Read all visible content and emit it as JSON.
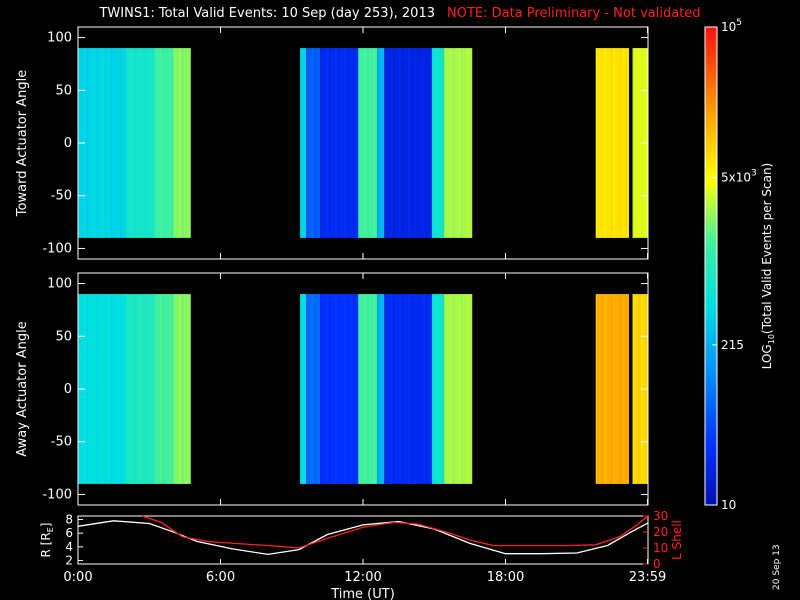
{
  "header": {
    "title": "TWINS1: Total Valid Events: 10 Sep (day 253), 2013",
    "note": "NOTE: Data Preliminary - Not validated"
  },
  "date_stamp": "20 Sep 13",
  "chart_data": [
    {
      "type": "heatmap",
      "ylabel": "Toward Actuator Angle",
      "ylim": [
        -110,
        110
      ],
      "yticks": [
        100,
        50,
        0,
        -50,
        -100
      ],
      "angle_range": [
        -90,
        90
      ],
      "xlim_hours": [
        0,
        24
      ],
      "gaps_hours": [
        [
          4.75,
          9.35
        ],
        [
          16.6,
          21.8
        ],
        [
          23.2,
          23.35
        ]
      ],
      "blocks": [
        {
          "start": 0.0,
          "end": 2.0,
          "level": 0.4
        },
        {
          "start": 2.0,
          "end": 3.2,
          "level": 0.46
        },
        {
          "start": 3.2,
          "end": 4.0,
          "level": 0.54
        },
        {
          "start": 4.0,
          "end": 4.75,
          "level": 0.6
        },
        {
          "start": 9.35,
          "end": 9.6,
          "level": 0.4
        },
        {
          "start": 9.6,
          "end": 10.2,
          "level": 0.2
        },
        {
          "start": 10.2,
          "end": 11.8,
          "level": 0.1
        },
        {
          "start": 11.8,
          "end": 12.6,
          "level": 0.55
        },
        {
          "start": 12.6,
          "end": 12.9,
          "level": 0.35
        },
        {
          "start": 12.9,
          "end": 14.9,
          "level": 0.08
        },
        {
          "start": 14.9,
          "end": 15.4,
          "level": 0.45
        },
        {
          "start": 15.4,
          "end": 16.6,
          "level": 0.62
        },
        {
          "start": 21.8,
          "end": 23.2,
          "level": 0.72
        },
        {
          "start": 23.35,
          "end": 24.0,
          "level": 0.66
        }
      ]
    },
    {
      "type": "heatmap",
      "ylabel": "Away Actuator Angle",
      "ylim": [
        -110,
        110
      ],
      "yticks": [
        100,
        50,
        0,
        -50,
        -100
      ],
      "angle_range": [
        -90,
        90
      ],
      "xlim_hours": [
        0,
        24
      ],
      "gaps_hours": [
        [
          4.75,
          9.35
        ],
        [
          16.6,
          21.8
        ],
        [
          23.2,
          23.35
        ]
      ],
      "blocks": [
        {
          "start": 0.0,
          "end": 2.0,
          "level": 0.42
        },
        {
          "start": 2.0,
          "end": 3.2,
          "level": 0.48
        },
        {
          "start": 3.2,
          "end": 4.0,
          "level": 0.55
        },
        {
          "start": 4.0,
          "end": 4.75,
          "level": 0.6
        },
        {
          "start": 9.35,
          "end": 9.6,
          "level": 0.42
        },
        {
          "start": 9.6,
          "end": 10.2,
          "level": 0.22
        },
        {
          "start": 10.2,
          "end": 11.8,
          "level": 0.12
        },
        {
          "start": 11.8,
          "end": 12.6,
          "level": 0.55
        },
        {
          "start": 12.6,
          "end": 12.9,
          "level": 0.35
        },
        {
          "start": 12.9,
          "end": 14.9,
          "level": 0.1
        },
        {
          "start": 14.9,
          "end": 15.4,
          "level": 0.45
        },
        {
          "start": 15.4,
          "end": 16.6,
          "level": 0.62
        },
        {
          "start": 21.8,
          "end": 23.2,
          "level": 0.8
        },
        {
          "start": 23.35,
          "end": 24.0,
          "level": 0.74
        }
      ]
    },
    {
      "type": "line",
      "ylabel": "R [R",
      "ylabel_sub": "E",
      "ylabel_close": "]",
      "ylim": [
        1.5,
        8.5
      ],
      "yticks": [
        2,
        4,
        6,
        8
      ],
      "xlabel": "Time (UT)",
      "xticks": [
        "0:00",
        "6:00",
        "12:00",
        "18:00",
        "23:59"
      ],
      "xtick_hours": [
        0,
        6,
        12,
        18,
        23.98
      ],
      "series": [
        {
          "axis": "left",
          "color": "#ffffff",
          "x": [
            0,
            1.5,
            3,
            4,
            5,
            6.5,
            8,
            9.3,
            10.5,
            12,
            13.5,
            15,
            16.5,
            18,
            19.5,
            21,
            22.3,
            23.3,
            24
          ],
          "y": [
            7,
            7.8,
            7.4,
            6.2,
            4.8,
            3.7,
            2.9,
            3.6,
            5.8,
            7.2,
            7.7,
            6.6,
            4.5,
            3.0,
            3.0,
            3.1,
            4.2,
            6.2,
            7.5
          ]
        },
        {
          "axis": "right",
          "color": "#ff2020",
          "x": [
            2.7,
            3.5,
            4.4,
            5.5,
            7,
            8.5,
            9.3,
            10.5,
            12,
            13.3,
            14.3,
            15.5,
            16.5,
            17.5,
            19,
            20.5,
            21.8,
            22.8,
            23.5,
            24
          ],
          "y": [
            30,
            26,
            17,
            14,
            12.5,
            11,
            10,
            16,
            23,
            26,
            25,
            20,
            15,
            11.5,
            11.5,
            11.5,
            12,
            17,
            24,
            30
          ]
        }
      ],
      "right_axis": {
        "label": "L Shell",
        "ylim": [
          0,
          30
        ],
        "yticks": [
          0,
          10,
          20,
          30
        ]
      }
    }
  ],
  "colorbar": {
    "label_prefix": "LOG",
    "label_sub": "10",
    "label_rest": "(Total Valid Events per Scan)",
    "ticks": [
      {
        "pos": 1.0,
        "base": "10",
        "sup": "5"
      },
      {
        "pos": 0.685,
        "base": "5x10",
        "sup": "3"
      },
      {
        "pos": 0.335,
        "base": "215",
        "sup": ""
      },
      {
        "pos": 0.0,
        "base": "10",
        "sup": ""
      }
    ]
  }
}
